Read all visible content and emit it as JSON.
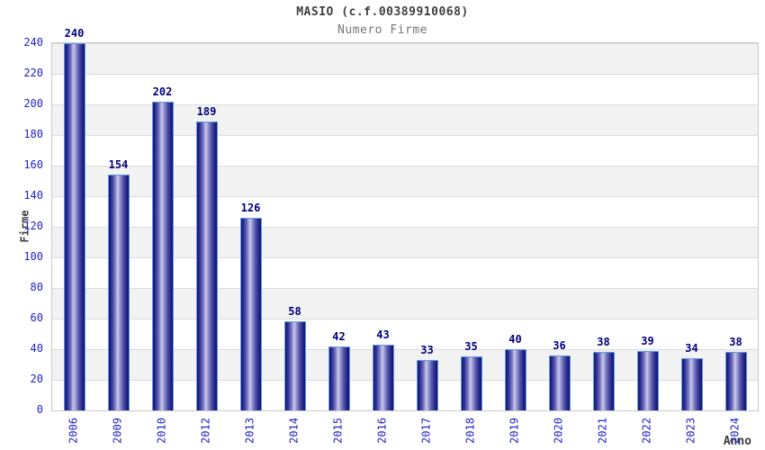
{
  "header": {
    "title": "MASIO (c.f.00389910068)",
    "subtitle": "Numero Firme"
  },
  "chart_data": {
    "type": "bar",
    "title": "MASIO (c.f.00389910068)",
    "subtitle": "Numero Firme",
    "xlabel": "Anno",
    "ylabel": "Firme",
    "categories": [
      "2006",
      "2009",
      "2010",
      "2012",
      "2013",
      "2014",
      "2015",
      "2016",
      "2017",
      "2018",
      "2019",
      "2020",
      "2021",
      "2022",
      "2023",
      "2024"
    ],
    "values": [
      240,
      154,
      202,
      189,
      126,
      58,
      42,
      43,
      33,
      35,
      40,
      36,
      38,
      39,
      34,
      38
    ],
    "ylim": [
      0,
      240
    ],
    "yticks": [
      0,
      20,
      40,
      60,
      80,
      100,
      120,
      140,
      160,
      180,
      200,
      220,
      240
    ],
    "grid": "horizontal-bands-alternating",
    "legend": "none",
    "colors": {
      "bar_edge": "#14146e",
      "bar_center": "#c9c9ec",
      "bar_outline": "#5c9ce6",
      "tick_label": "#2222cc",
      "value_label": "#00007d",
      "title": "#3f3f3f",
      "subtitle": "#757575",
      "band_gray": "#f2f2f2",
      "gridline": "#dcdcdc",
      "plot_border": "#c9c9c9",
      "background": "#ffffff"
    }
  }
}
